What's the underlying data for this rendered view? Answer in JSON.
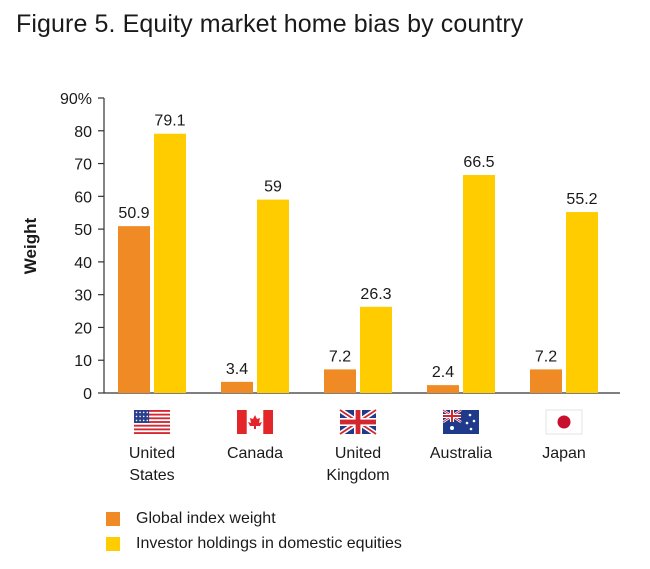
{
  "title": "Figure 5. Equity market home bias by country",
  "chart_data": {
    "type": "bar",
    "title": "Figure 5. Equity market home bias by country",
    "xlabel": "",
    "ylabel": "Weight",
    "ylim": [
      0,
      90
    ],
    "yticks": [
      0,
      10,
      20,
      30,
      40,
      50,
      60,
      70,
      80,
      90
    ],
    "ytick_labels": [
      "0",
      "10",
      "20",
      "30",
      "40",
      "50",
      "60",
      "70",
      "80",
      "90%"
    ],
    "categories": [
      {
        "label_lines": [
          "United",
          "States"
        ],
        "flag": "us-flag-icon"
      },
      {
        "label_lines": [
          "Canada"
        ],
        "flag": "canada-flag-icon"
      },
      {
        "label_lines": [
          "United",
          "Kingdom"
        ],
        "flag": "uk-flag-icon"
      },
      {
        "label_lines": [
          "Australia"
        ],
        "flag": "australia-flag-icon"
      },
      {
        "label_lines": [
          "Japan"
        ],
        "flag": "japan-flag-icon"
      }
    ],
    "series": [
      {
        "name": "Global index weight",
        "color": "#f08a24",
        "values": [
          50.9,
          3.4,
          7.2,
          2.4,
          7.2
        ],
        "labels": [
          "50.9",
          "3.4",
          "7.2",
          "2.4",
          "7.2"
        ]
      },
      {
        "name": "Investor holdings in domestic equities",
        "color": "#ffcc00",
        "values": [
          79.1,
          59,
          26.3,
          66.5,
          55.2
        ],
        "labels": [
          "79.1",
          "59",
          "26.3",
          "66.5",
          "55.2"
        ]
      }
    ],
    "legend_position": "bottom-left",
    "grid": false
  }
}
